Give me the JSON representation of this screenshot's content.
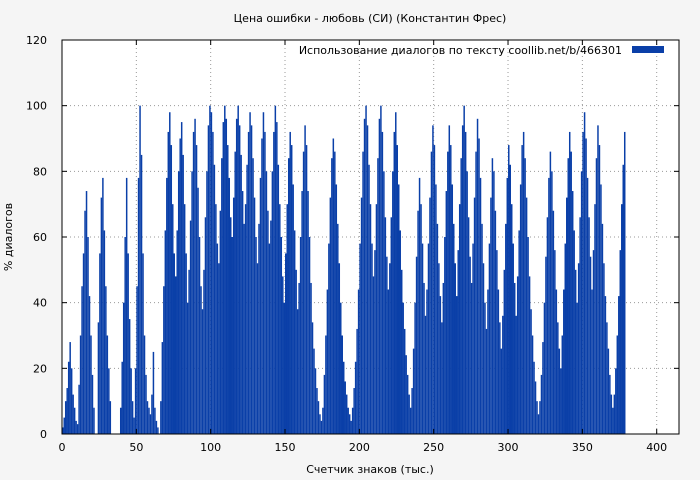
{
  "chart_data": {
    "type": "bar",
    "title": "Цена ошибки - любовь (СИ) (Константин Фрес)",
    "xlabel": "Счетчик знаков (тыс.)",
    "ylabel": "% диалогов",
    "xlim": [
      0,
      415
    ],
    "ylim": [
      0,
      120
    ],
    "xticks": [
      0,
      50,
      100,
      150,
      200,
      250,
      300,
      350,
      400
    ],
    "yticks": [
      0,
      20,
      40,
      60,
      80,
      100,
      120
    ],
    "grid": true,
    "legend_position": "top-right",
    "color": "#0a3fa8",
    "series": [
      {
        "name": "Использование диалогов по тексту  coollib.net/b/466301",
        "x_start": 0,
        "x_step": 1,
        "values": [
          2,
          5,
          10,
          14,
          22,
          28,
          20,
          12,
          8,
          4,
          3,
          15,
          30,
          45,
          55,
          68,
          74,
          60,
          42,
          30,
          18,
          8,
          0,
          0,
          34,
          55,
          72,
          78,
          62,
          45,
          30,
          20,
          10,
          0,
          0,
          0,
          0,
          0,
          0,
          8,
          22,
          40,
          60,
          78,
          55,
          35,
          20,
          10,
          5,
          20,
          45,
          78,
          100,
          85,
          55,
          30,
          18,
          10,
          8,
          6,
          12,
          25,
          8,
          4,
          2,
          0,
          10,
          28,
          45,
          62,
          78,
          92,
          98,
          88,
          70,
          55,
          48,
          62,
          80,
          90,
          95,
          85,
          70,
          55,
          40,
          50,
          65,
          80,
          92,
          96,
          88,
          75,
          60,
          45,
          38,
          50,
          66,
          80,
          94,
          100,
          98,
          92,
          82,
          70,
          58,
          52,
          68,
          84,
          95,
          100,
          96,
          88,
          78,
          66,
          60,
          72,
          86,
          96,
          100,
          94,
          85,
          74,
          64,
          70,
          82,
          92,
          98,
          94,
          84,
          72,
          60,
          52,
          64,
          78,
          90,
          98,
          92,
          80,
          68,
          58,
          65,
          80,
          92,
          100,
          95,
          82,
          70,
          60,
          48,
          40,
          55,
          70,
          84,
          92,
          88,
          76,
          62,
          50,
          38,
          46,
          60,
          74,
          86,
          94,
          88,
          74,
          60,
          46,
          34,
          26,
          20,
          14,
          10,
          6,
          4,
          8,
          18,
          30,
          44,
          58,
          72,
          84,
          90,
          86,
          76,
          64,
          52,
          40,
          30,
          22,
          16,
          12,
          8,
          6,
          4,
          8,
          14,
          22,
          32,
          44,
          58,
          72,
          86,
          96,
          100,
          94,
          82,
          70,
          58,
          48,
          56,
          70,
          84,
          96,
          100,
          92,
          80,
          66,
          54,
          44,
          52,
          66,
          80,
          92,
          98,
          88,
          76,
          62,
          50,
          40,
          32,
          24,
          18,
          12,
          8,
          14,
          26,
          40,
          54,
          68,
          78,
          70,
          58,
          46,
          36,
          44,
          58,
          72,
          86,
          94,
          88,
          76,
          64,
          52,
          42,
          34,
          46,
          60,
          74,
          86,
          94,
          88,
          76,
          64,
          52,
          42,
          56,
          70,
          84,
          94,
          100,
          92,
          80,
          66,
          54,
          46,
          58,
          72,
          86,
          96,
          90,
          78,
          64,
          52,
          40,
          32,
          44,
          58,
          72,
          84,
          80,
          68,
          56,
          44,
          34,
          26,
          36,
          50,
          64,
          78,
          88,
          82,
          70,
          58,
          46,
          36,
          48,
          62,
          76,
          88,
          92,
          84,
          72,
          60,
          48,
          38,
          30,
          22,
          16,
          10,
          6,
          10,
          18,
          28,
          40,
          54,
          66,
          78,
          86,
          80,
          68,
          56,
          44,
          34,
          26,
          20,
          30,
          44,
          58,
          72,
          84,
          92,
          86,
          74,
          62,
          50,
          40,
          52,
          66,
          80,
          92,
          98,
          90,
          78,
          66,
          54,
          44,
          56,
          70,
          84,
          94,
          88,
          76,
          64,
          52,
          42,
          34,
          26,
          18,
          12,
          8,
          12,
          20,
          30,
          42,
          56,
          70,
          82,
          92
        ]
      }
    ]
  }
}
